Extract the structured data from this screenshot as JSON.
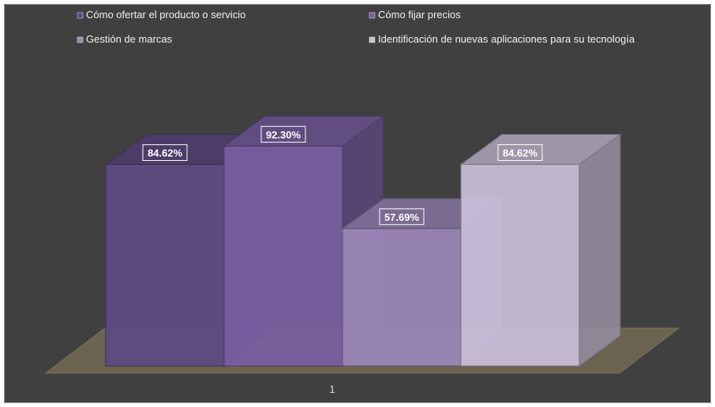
{
  "chart_data": {
    "type": "bar",
    "categories": [
      "1"
    ],
    "series": [
      {
        "name": "Cómo ofertar el producto o servicio",
        "values": [
          84.62
        ],
        "label": "84.62%",
        "color": "#5d4b82"
      },
      {
        "name": "Cómo fijar precios",
        "values": [
          92.3
        ],
        "label": "92.30%",
        "color": "#7a5fa3"
      },
      {
        "name": "Gestión de marcas",
        "values": [
          57.69
        ],
        "label": "57.69%",
        "color": "#9b87b8"
      },
      {
        "name": "Identificación de nuevas aplicaciones para su tecnología",
        "values": [
          84.62
        ],
        "label": "84.62%",
        "color": "#c9bfd9"
      }
    ],
    "ylim": [
      0,
      100
    ],
    "grid": false,
    "legend_position": "top",
    "background_color": "#404040",
    "floor_color": "#6b6350"
  }
}
